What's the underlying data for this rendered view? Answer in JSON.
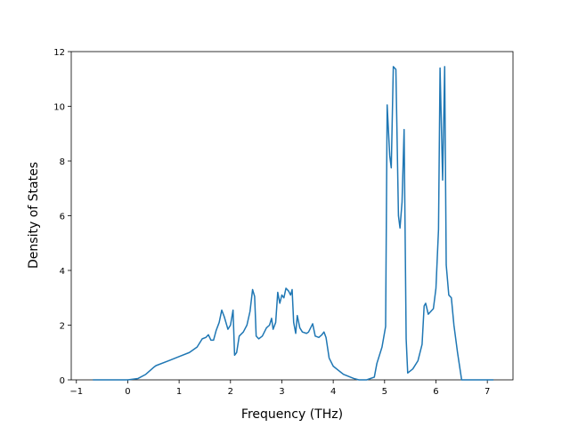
{
  "chart_data": {
    "type": "line",
    "xlabel": "Frequency (THz)",
    "ylabel": "Density of States",
    "x": [
      -0.68,
      0,
      0.2,
      0.35,
      0.5,
      0.55,
      0.8,
      1.0,
      1.2,
      1.35,
      1.45,
      1.52,
      1.57,
      1.62,
      1.67,
      1.72,
      1.78,
      1.83,
      1.88,
      1.95,
      2.0,
      2.05,
      2.08,
      2.12,
      2.17,
      2.25,
      2.32,
      2.38,
      2.43,
      2.47,
      2.5,
      2.55,
      2.62,
      2.7,
      2.76,
      2.8,
      2.83,
      2.88,
      2.92,
      2.96,
      3.0,
      3.04,
      3.08,
      3.13,
      3.17,
      3.2,
      3.23,
      3.27,
      3.3,
      3.35,
      3.4,
      3.48,
      3.52,
      3.56,
      3.6,
      3.65,
      3.72,
      3.78,
      3.82,
      3.86,
      3.92,
      4.0,
      4.2,
      4.4,
      4.5,
      4.65,
      4.8,
      4.85,
      4.95,
      5.02,
      5.05,
      5.1,
      5.13,
      5.17,
      5.22,
      5.27,
      5.3,
      5.34,
      5.38,
      5.42,
      5.45,
      5.55,
      5.65,
      5.73,
      5.77,
      5.8,
      5.85,
      5.9,
      5.95,
      6.0,
      6.05,
      6.08,
      6.13,
      6.17,
      6.2,
      6.25,
      6.3,
      6.35,
      6.42,
      6.5,
      6.6,
      7.12
    ],
    "values": [
      0,
      0,
      0.05,
      0.2,
      0.45,
      0.52,
      0.7,
      0.85,
      1.0,
      1.2,
      1.5,
      1.55,
      1.65,
      1.45,
      1.45,
      1.8,
      2.1,
      2.55,
      2.3,
      1.85,
      2.0,
      2.55,
      0.9,
      1.0,
      1.6,
      1.75,
      2.0,
      2.5,
      3.3,
      3.05,
      1.6,
      1.5,
      1.6,
      1.9,
      2.0,
      2.25,
      1.85,
      2.1,
      3.2,
      2.8,
      3.1,
      3.0,
      3.35,
      3.25,
      3.1,
      3.3,
      2.1,
      1.7,
      2.35,
      1.9,
      1.75,
      1.7,
      1.75,
      1.9,
      2.05,
      1.6,
      1.55,
      1.65,
      1.75,
      1.55,
      0.8,
      0.5,
      0.2,
      0.05,
      0,
      0,
      0.1,
      0.6,
      1.2,
      1.95,
      10.05,
      8.2,
      7.75,
      11.45,
      11.35,
      6.0,
      5.55,
      6.5,
      9.15,
      1.5,
      0.25,
      0.4,
      0.7,
      1.3,
      2.7,
      2.8,
      2.4,
      2.5,
      2.6,
      3.35,
      5.5,
      11.4,
      7.3,
      11.45,
      4.2,
      3.1,
      3.0,
      2.0,
      1.0,
      0,
      0,
      0
    ],
    "color": "#1f77b4",
    "xlim": [
      -1.1,
      7.5
    ],
    "ylim": [
      0,
      12
    ],
    "xticks": [
      {
        "value": -1,
        "label": "−1"
      },
      0,
      1,
      2,
      3,
      4,
      5,
      6,
      7
    ],
    "yticks": [
      0,
      2,
      4,
      6,
      8,
      10,
      12
    ]
  }
}
